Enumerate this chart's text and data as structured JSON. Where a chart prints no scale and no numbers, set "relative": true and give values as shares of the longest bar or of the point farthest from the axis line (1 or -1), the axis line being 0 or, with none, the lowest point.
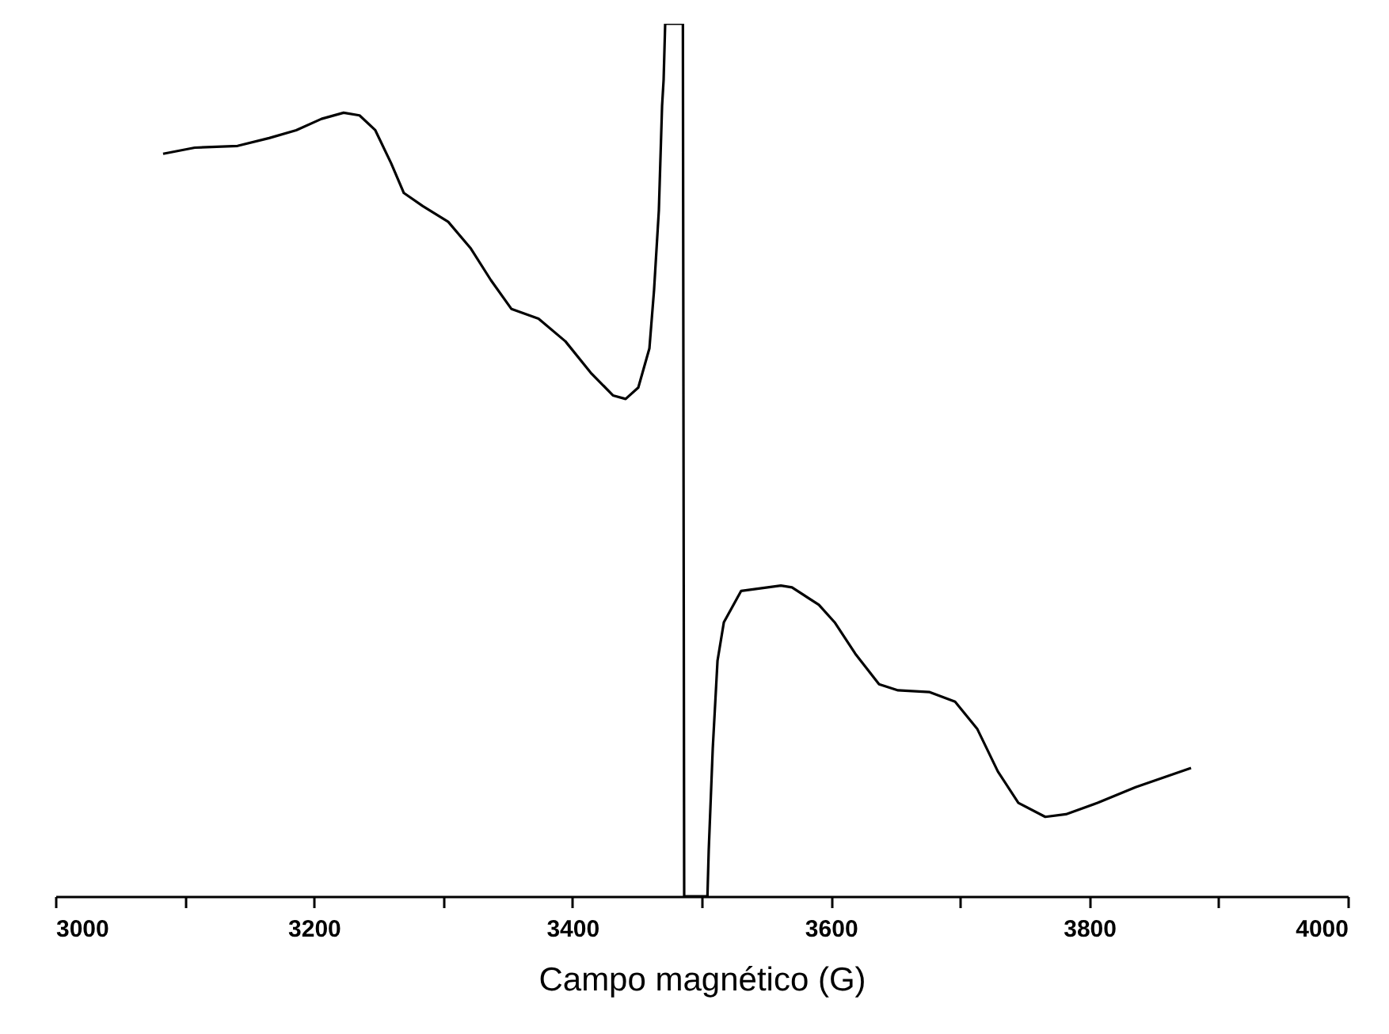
{
  "chart_data": {
    "type": "line",
    "relative": true,
    "xlabel": "Campo magnético (G)",
    "xlim": [
      3000,
      4000
    ],
    "xticks": [
      3000,
      {
        "value": 3100,
        "label": null
      },
      3200,
      {
        "value": 3300,
        "label": null
      },
      3400,
      {
        "value": 3500,
        "label": null
      },
      3600,
      {
        "value": 3700,
        "label": null
      },
      3800,
      {
        "value": 3900,
        "label": null
      },
      4000
    ],
    "grid": false,
    "marker": "none",
    "line_style": "solid",
    "series": [
      {
        "color": "#000000",
        "x": [
          3083.3,
          3107.8,
          3140.9,
          3165.4,
          3186.3,
          3205.9,
          3223.0,
          3235.3,
          3247.5,
          3259.8,
          3269.6,
          3284.3,
          3303.9,
          3321.1,
          3337.0,
          3352.9,
          3373.8,
          3394.6,
          3414.2,
          3431.4,
          3441.2,
          3451.0,
          3459.6,
          3463.2,
          3466.9,
          3469.4,
          3470.6,
          3471.8,
          3485.5,
          3486.5,
          3504.5,
          3505.5,
          3508.6,
          3512.3,
          3517.2,
          3530.6,
          3561.3,
          3569.9,
          3590.7,
          3602.9,
          3618.9,
          3637.3,
          3652.0,
          3676.5,
          3696.1,
          3713.2,
          3729.2,
          3745.1,
          3765.9,
          3781.9,
          3806.4,
          3835.8,
          3878.7
        ],
        "values": [
          0.851,
          0.858,
          0.86,
          0.869,
          0.878,
          0.891,
          0.898,
          0.895,
          0.878,
          0.84,
          0.806,
          0.791,
          0.773,
          0.743,
          0.706,
          0.673,
          0.662,
          0.636,
          0.6,
          0.574,
          0.57,
          0.583,
          0.628,
          0.695,
          0.786,
          0.906,
          0.936,
          1.0,
          1.0,
          0.0,
          0.0,
          0.053,
          0.169,
          0.27,
          0.314,
          0.35,
          0.356,
          0.354,
          0.334,
          0.314,
          0.278,
          0.243,
          0.236,
          0.234,
          0.223,
          0.192,
          0.143,
          0.107,
          0.091,
          0.094,
          0.107,
          0.125,
          0.147
        ]
      }
    ]
  }
}
